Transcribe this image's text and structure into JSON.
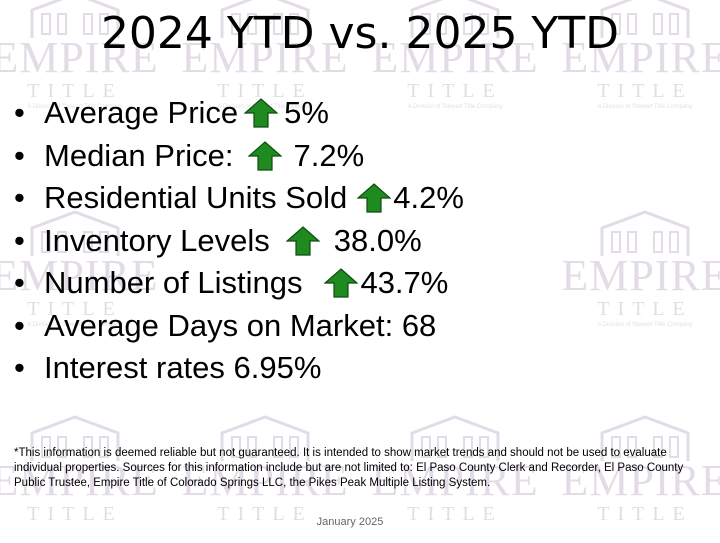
{
  "watermark": {
    "brand": "EMPIRE",
    "sub": "TITLE",
    "tagline": "A Division of Stewart Title Company"
  },
  "title": "2024 YTD vs. 2025 YTD",
  "bullets": [
    {
      "label": "Average Price",
      "value": "5%",
      "icon": "up-arrow-icon"
    },
    {
      "label": "Median Price:",
      "value": "7.2%",
      "icon": "up-arrow-icon"
    },
    {
      "label": "Residential Units Sold",
      "value": "4.2%",
      "icon": "up-arrow-icon"
    },
    {
      "label": "Inventory Levels",
      "value": "38.0%",
      "icon": "up-arrow-icon"
    },
    {
      "label": "Number of Listings",
      "value": "43.7%",
      "icon": "up-arrow-icon"
    },
    {
      "label": "Average Days on Market: 68"
    },
    {
      "label": "Interest rates 6.95%"
    }
  ],
  "disclaimer": {
    "line1": "*This information is deemed reliable but not guaranteed.  It is intended to show market trends and should not be used to evaluate",
    "line2": "individual properties.  Sources for this information include but are not limited to: El Paso County Clerk and Recorder, El Paso County",
    "line3": "Public Trustee, Empire Title of Colorado Springs LLC, the Pikes Peak Multiple Listing System."
  },
  "footer": {
    "date": "January 2025"
  },
  "colors": {
    "arrow": "#1f8a1f",
    "watermark": "#5a2a6e"
  }
}
